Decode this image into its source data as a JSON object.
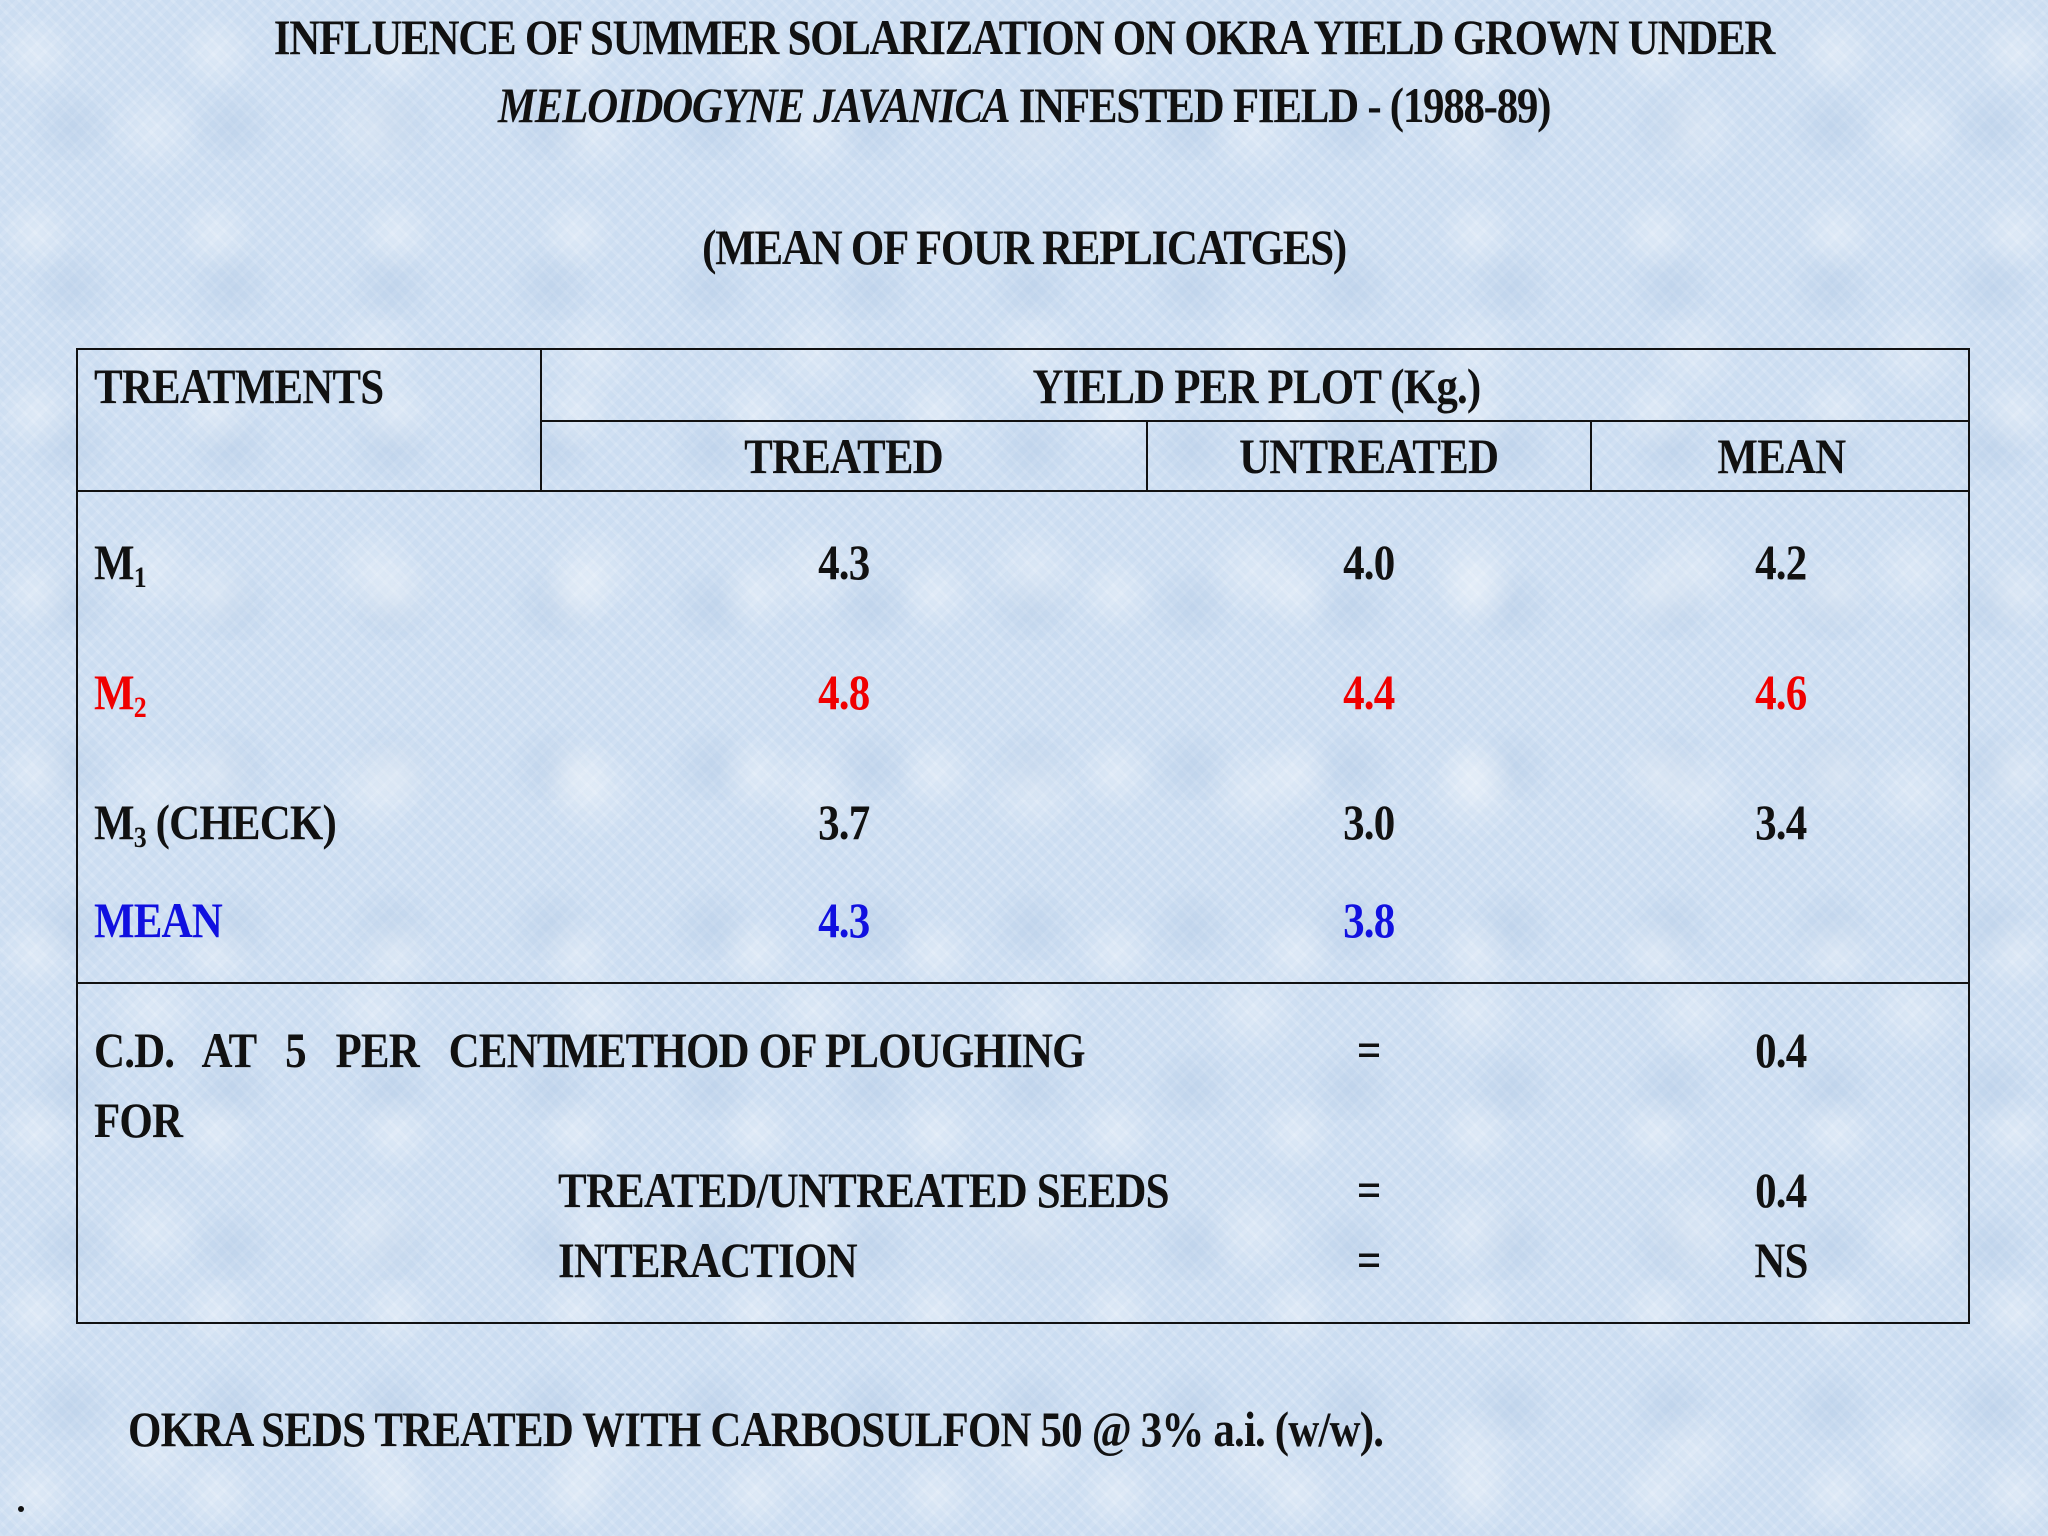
{
  "title": {
    "line1": "INFLUENCE OF SUMMER SOLARIZATION ON OKRA YIELD GROWN UNDER",
    "line2_italic": "MELOIDOGYNE JAVANICA",
    "line2_rest": " INFESTED FIELD - (1988-89)",
    "subtitle": "(MEAN OF FOUR REPLICATGES)"
  },
  "table": {
    "header": {
      "treatments": "TREATMENTS",
      "group": "YIELD PER PLOT (Kg.)",
      "treated": "TREATED",
      "untreated": "UNTREATED",
      "mean": "MEAN"
    },
    "rows": [
      {
        "label": "M",
        "sub": "1",
        "suffix": "",
        "treated": "4.3",
        "untreated": "4.0",
        "mean": "4.2",
        "color": "#111111"
      },
      {
        "label": "M",
        "sub": "2",
        "suffix": "",
        "treated": "4.8",
        "untreated": "4.4",
        "mean": "4.6",
        "color": "#f00000"
      },
      {
        "label": "M",
        "sub": "3",
        "suffix": " (CHECK)",
        "treated": "3.7",
        "untreated": "3.0",
        "mean": "3.4",
        "color": "#111111"
      },
      {
        "label": "MEAN",
        "sub": "",
        "suffix": "",
        "treated": "4.3",
        "untreated": "3.8",
        "mean": "",
        "color": "#1010e0"
      }
    ],
    "cd": {
      "label_line1": "C.D.   AT   5   PER   CENT",
      "label_line2": "FOR",
      "items": [
        {
          "name": "METHOD OF PLOUGHING",
          "eq": "=",
          "value": "0.4"
        },
        {
          "name": "TREATED/UNTREATED SEEDS",
          "eq": "=",
          "value": "0.4"
        },
        {
          "name": "INTERACTION",
          "eq": "=",
          "value": "NS"
        }
      ]
    }
  },
  "footnote": "OKRA SEDS TREATED WITH CARBOSULFON 50 @ 3% a.i. (w/w).",
  "colors": {
    "text": "#111111",
    "highlight_red": "#f00000",
    "highlight_blue": "#1010e0",
    "background": "#cfe0f3"
  }
}
